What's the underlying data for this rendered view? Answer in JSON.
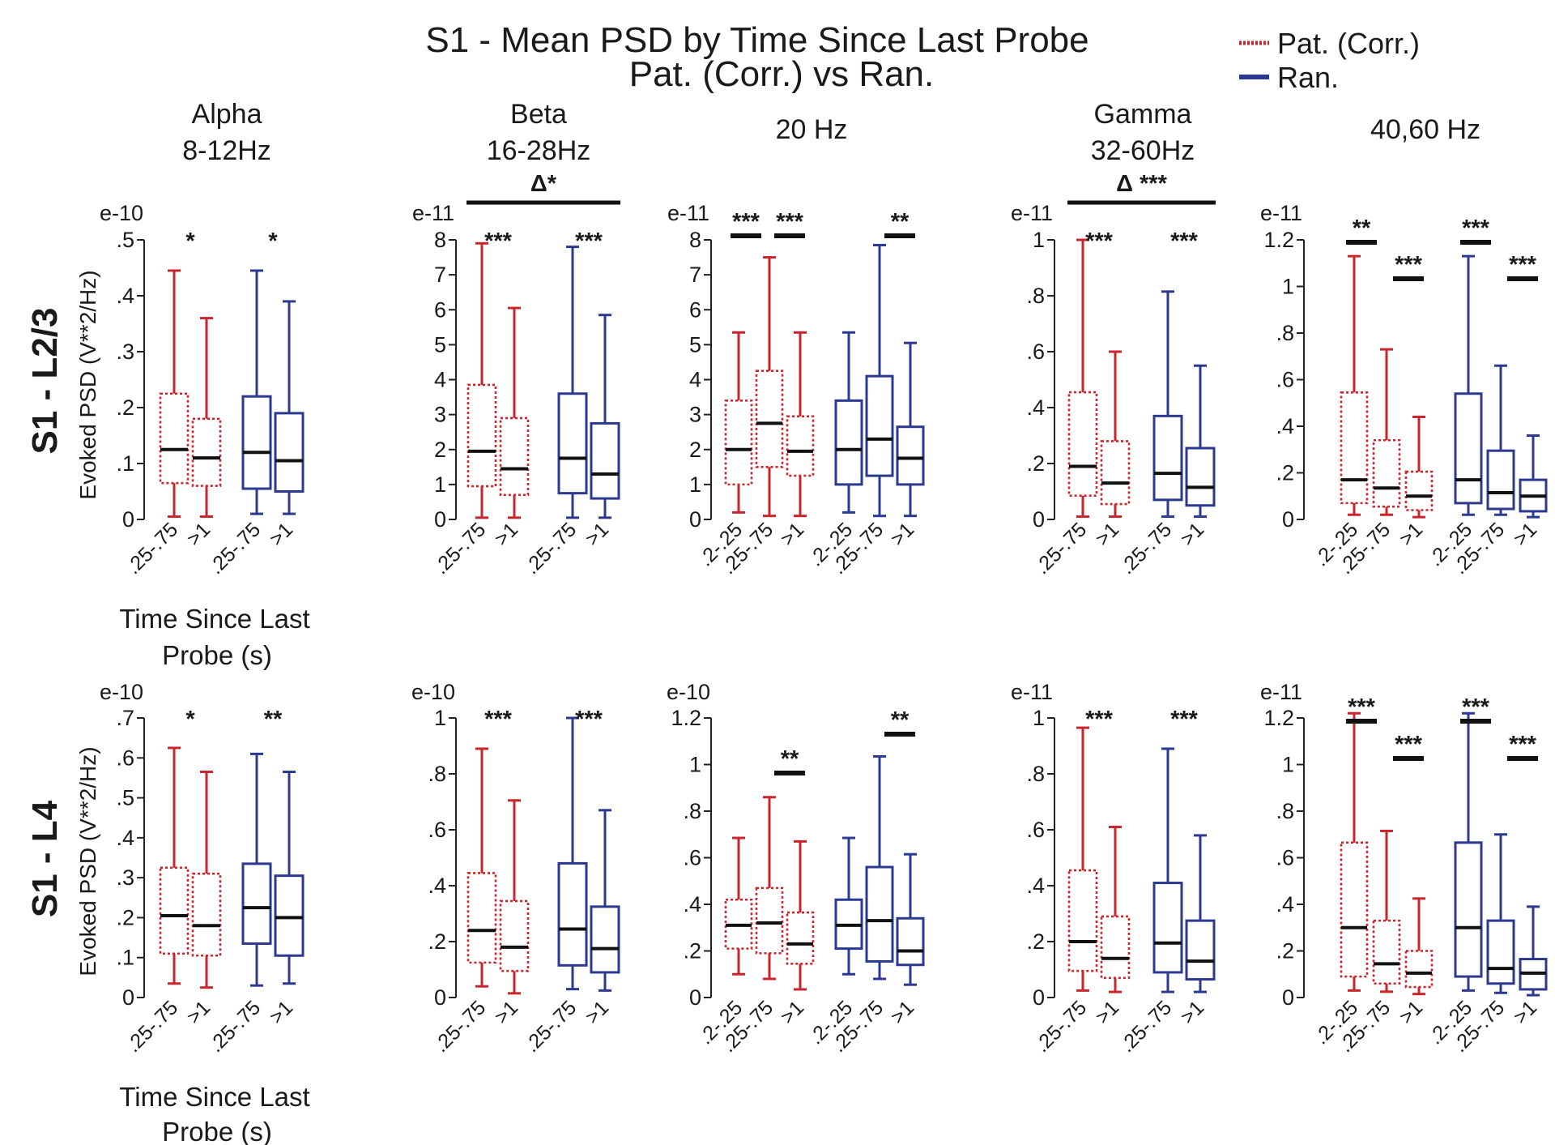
{
  "title_line1": "S1 - Mean PSD by Time Since Last Probe",
  "title_line2": "Pat. (Corr.) vs Ran.",
  "legend": [
    {
      "label": "Pat. (Corr.)",
      "color": "#c8262c",
      "style": "dotted"
    },
    {
      "label": "Ran.",
      "color": "#2b3990",
      "style": "solid"
    }
  ],
  "panel_titles": [
    [
      "Alpha",
      "8-12Hz"
    ],
    [
      "Beta",
      "16-28Hz"
    ],
    [
      "20 Hz"
    ],
    [
      "Gamma",
      "32-60Hz"
    ],
    [
      "40,60 Hz"
    ]
  ],
  "row_labels": [
    "S1 - L2/3",
    "S1 - L4"
  ],
  "ylabel": "Evoked PSD (V**2/Hz)",
  "xlabel_line1": "Time Since Last",
  "xlabel_line2": "Probe (s)",
  "chart_data": [
    {
      "type": "box",
      "row": 0,
      "col": 0,
      "exponent": "e-10",
      "ylim": [
        0,
        0.5
      ],
      "yticks": [
        0,
        0.1,
        0.2,
        0.3,
        0.4,
        0.5
      ],
      "ytick_labels": [
        "0",
        ".1",
        ".2",
        ".3",
        ".4",
        ".5"
      ],
      "categories": [
        ".25-.75",
        ">1"
      ],
      "series": [
        {
          "name": "Pat. (Corr.)",
          "boxes": [
            [
              0.005,
              0.065,
              0.125,
              0.225,
              0.445
            ],
            [
              0.005,
              0.06,
              0.11,
              0.18,
              0.36
            ]
          ]
        },
        {
          "name": "Ran.",
          "boxes": [
            [
              0.01,
              0.055,
              0.12,
              0.22,
              0.445
            ],
            [
              0.01,
              0.05,
              0.105,
              0.19,
              0.39
            ]
          ]
        }
      ],
      "annotations": [
        {
          "text": "*",
          "series": 0
        },
        {
          "text": "*",
          "series": 1
        }
      ]
    },
    {
      "type": "box",
      "row": 0,
      "col": 1,
      "exponent": "e-11",
      "ylim": [
        0,
        8
      ],
      "yticks": [
        0,
        1,
        2,
        3,
        4,
        5,
        6,
        7,
        8
      ],
      "ytick_labels": [
        "0",
        "1",
        "2",
        "3",
        "4",
        "5",
        "6",
        "7",
        "8"
      ],
      "categories": [
        ".25-.75",
        ">1"
      ],
      "series": [
        {
          "name": "Pat. (Corr.)",
          "boxes": [
            [
              0.05,
              0.95,
              1.95,
              3.85,
              7.9
            ],
            [
              0.05,
              0.7,
              1.45,
              2.9,
              6.05
            ]
          ]
        },
        {
          "name": "Ran.",
          "boxes": [
            [
              0.05,
              0.75,
              1.75,
              3.6,
              7.8
            ],
            [
              0.05,
              0.6,
              1.3,
              2.75,
              5.85
            ]
          ]
        }
      ],
      "annotations": [
        {
          "text": "***",
          "series": 0
        },
        {
          "text": "***",
          "series": 1
        }
      ],
      "group_annotation": "Δ*"
    },
    {
      "type": "box",
      "row": 0,
      "col": 2,
      "exponent": "e-11",
      "ylim": [
        0,
        8
      ],
      "yticks": [
        0,
        1,
        2,
        3,
        4,
        5,
        6,
        7,
        8
      ],
      "ytick_labels": [
        "0",
        "1",
        "2",
        "3",
        "4",
        "5",
        "6",
        "7",
        "8"
      ],
      "categories": [
        ".2-.25",
        ".25-.75",
        ">1"
      ],
      "series": [
        {
          "name": "Pat. (Corr.)",
          "boxes": [
            [
              0.2,
              1.0,
              2.0,
              3.4,
              5.35
            ],
            [
              0.1,
              1.5,
              2.75,
              4.25,
              7.5
            ],
            [
              0.1,
              1.25,
              1.95,
              2.95,
              5.35
            ]
          ]
        },
        {
          "name": "Ran.",
          "boxes": [
            [
              0.2,
              1.0,
              2.0,
              3.4,
              5.35
            ],
            [
              0.1,
              1.25,
              2.3,
              4.1,
              7.85
            ],
            [
              0.1,
              1.0,
              1.75,
              2.65,
              5.05
            ]
          ]
        }
      ],
      "bars": [
        {
          "text": "***",
          "series": 0,
          "from": 0,
          "to": 0
        },
        {
          "text": "***",
          "series": 0,
          "from": 2,
          "to": 2
        },
        {
          "text": "**",
          "series": 1,
          "from": 2,
          "to": 2
        }
      ]
    },
    {
      "type": "box",
      "row": 0,
      "col": 3,
      "exponent": "e-11",
      "ylim": [
        0,
        1
      ],
      "yticks": [
        0,
        0.2,
        0.4,
        0.6,
        0.8,
        1
      ],
      "ytick_labels": [
        "0",
        ".2",
        ".4",
        ".6",
        ".8",
        "1"
      ],
      "categories": [
        ".25-.75",
        ">1"
      ],
      "series": [
        {
          "name": "Pat. (Corr.)",
          "boxes": [
            [
              0.01,
              0.085,
              0.19,
              0.455,
              1.0
            ],
            [
              0.01,
              0.055,
              0.13,
              0.28,
              0.6
            ]
          ]
        },
        {
          "name": "Ran.",
          "boxes": [
            [
              0.01,
              0.07,
              0.165,
              0.37,
              0.815
            ],
            [
              0.01,
              0.05,
              0.115,
              0.255,
              0.55
            ]
          ]
        }
      ],
      "annotations": [
        {
          "text": "***",
          "series": 0
        },
        {
          "text": "***",
          "series": 1
        }
      ],
      "group_annotation": "Δ ***"
    },
    {
      "type": "box",
      "row": 0,
      "col": 4,
      "exponent": "e-11",
      "ylim": [
        0,
        1.2
      ],
      "yticks": [
        0,
        0.2,
        0.4,
        0.6,
        0.8,
        1,
        1.2
      ],
      "ytick_labels": [
        "0",
        ".2",
        ".4",
        ".6",
        ".8",
        "1",
        "1.2"
      ],
      "categories": [
        ".2-.25",
        ".25-.75",
        ">1"
      ],
      "series": [
        {
          "name": "Pat. (Corr.)",
          "boxes": [
            [
              0.02,
              0.07,
              0.17,
              0.545,
              1.13
            ],
            [
              0.02,
              0.055,
              0.135,
              0.34,
              0.73
            ],
            [
              0.01,
              0.04,
              0.1,
              0.205,
              0.44
            ]
          ]
        },
        {
          "name": "Ran.",
          "boxes": [
            [
              0.02,
              0.07,
              0.17,
              0.54,
              1.13
            ],
            [
              0.02,
              0.045,
              0.115,
              0.295,
              0.66
            ],
            [
              0.01,
              0.035,
              0.1,
              0.17,
              0.36
            ]
          ]
        }
      ],
      "bars": [
        {
          "text": "**",
          "series": 0,
          "from": 0,
          "to": 0,
          "level": 0
        },
        {
          "text": "***",
          "series": 0,
          "from": 2,
          "to": 2,
          "level": 1
        },
        {
          "text": "***",
          "series": 1,
          "from": 0,
          "to": 0,
          "level": 0
        },
        {
          "text": "***",
          "series": 1,
          "from": 2,
          "to": 2,
          "level": 1
        }
      ]
    },
    {
      "type": "box",
      "row": 1,
      "col": 0,
      "exponent": "e-10",
      "ylim": [
        0,
        0.7
      ],
      "yticks": [
        0,
        0.1,
        0.2,
        0.3,
        0.4,
        0.5,
        0.6,
        0.7
      ],
      "ytick_labels": [
        "0",
        ".1",
        ".2",
        ".3",
        ".4",
        ".5",
        ".6",
        ".7"
      ],
      "categories": [
        ".25-.75",
        ">1"
      ],
      "series": [
        {
          "name": "Pat. (Corr.)",
          "boxes": [
            [
              0.035,
              0.11,
              0.205,
              0.325,
              0.625
            ],
            [
              0.025,
              0.105,
              0.18,
              0.31,
              0.565
            ]
          ]
        },
        {
          "name": "Ran.",
          "boxes": [
            [
              0.03,
              0.135,
              0.225,
              0.335,
              0.61
            ],
            [
              0.035,
              0.105,
              0.2,
              0.305,
              0.565
            ]
          ]
        }
      ],
      "annotations": [
        {
          "text": "*",
          "series": 0
        },
        {
          "text": "**",
          "series": 1
        }
      ]
    },
    {
      "type": "box",
      "row": 1,
      "col": 1,
      "exponent": "e-10",
      "ylim": [
        0,
        1
      ],
      "yticks": [
        0,
        0.2,
        0.4,
        0.6,
        0.8,
        1
      ],
      "ytick_labels": [
        "0",
        ".2",
        ".4",
        ".6",
        ".8",
        "1"
      ],
      "categories": [
        ".25-.75",
        ">1"
      ],
      "series": [
        {
          "name": "Pat. (Corr.)",
          "boxes": [
            [
              0.04,
              0.125,
              0.24,
              0.445,
              0.89
            ],
            [
              0.015,
              0.095,
              0.18,
              0.345,
              0.705
            ]
          ]
        },
        {
          "name": "Ran.",
          "boxes": [
            [
              0.03,
              0.115,
              0.245,
              0.48,
              1.0
            ],
            [
              0.025,
              0.09,
              0.175,
              0.325,
              0.67
            ]
          ]
        }
      ],
      "annotations": [
        {
          "text": "***",
          "series": 0
        },
        {
          "text": "***",
          "series": 1
        }
      ]
    },
    {
      "type": "box",
      "row": 1,
      "col": 2,
      "exponent": "e-10",
      "ylim": [
        0,
        1.2
      ],
      "yticks": [
        0,
        0.2,
        0.4,
        0.6,
        0.8,
        1,
        1.2
      ],
      "ytick_labels": [
        "0",
        ".2",
        ".4",
        ".6",
        ".8",
        "1",
        "1.2"
      ],
      "categories": [
        ".2-.25",
        ".25-.75",
        ">1"
      ],
      "series": [
        {
          "name": "Pat. (Corr.)",
          "boxes": [
            [
              0.1,
              0.21,
              0.31,
              0.42,
              0.685
            ],
            [
              0.08,
              0.19,
              0.32,
              0.47,
              0.86
            ],
            [
              0.035,
              0.145,
              0.23,
              0.365,
              0.67
            ]
          ]
        },
        {
          "name": "Ran.",
          "boxes": [
            [
              0.1,
              0.21,
              0.31,
              0.42,
              0.685
            ],
            [
              0.08,
              0.155,
              0.33,
              0.56,
              1.035
            ],
            [
              0.055,
              0.14,
              0.2,
              0.34,
              0.615
            ]
          ]
        }
      ],
      "bars": [
        {
          "text": "**",
          "series": 0,
          "from": 2,
          "to": 2
        },
        {
          "text": "**",
          "series": 1,
          "from": 2,
          "to": 2
        }
      ]
    },
    {
      "type": "box",
      "row": 1,
      "col": 3,
      "exponent": "e-11",
      "ylim": [
        0,
        1
      ],
      "yticks": [
        0,
        0.2,
        0.4,
        0.6,
        0.8,
        1
      ],
      "ytick_labels": [
        "0",
        ".2",
        ".4",
        ".6",
        ".8",
        "1"
      ],
      "categories": [
        ".25-.75",
        ">1"
      ],
      "series": [
        {
          "name": "Pat. (Corr.)",
          "boxes": [
            [
              0.025,
              0.095,
              0.2,
              0.455,
              0.965
            ],
            [
              0.02,
              0.07,
              0.14,
              0.29,
              0.61
            ]
          ]
        },
        {
          "name": "Ran.",
          "boxes": [
            [
              0.02,
              0.09,
              0.195,
              0.41,
              0.89
            ],
            [
              0.02,
              0.065,
              0.13,
              0.275,
              0.58
            ]
          ]
        }
      ],
      "annotations": [
        {
          "text": "***",
          "series": 0
        },
        {
          "text": "***",
          "series": 1
        }
      ]
    },
    {
      "type": "box",
      "row": 1,
      "col": 4,
      "exponent": "e-11",
      "ylim": [
        0,
        1.2
      ],
      "yticks": [
        0,
        0.2,
        0.4,
        0.6,
        0.8,
        1,
        1.2
      ],
      "ytick_labels": [
        "0",
        ".2",
        ".4",
        ".6",
        ".8",
        "1",
        "1.2"
      ],
      "categories": [
        ".2-.25",
        ".25-.75",
        ">1"
      ],
      "series": [
        {
          "name": "Pat. (Corr.)",
          "boxes": [
            [
              0.03,
              0.09,
              0.3,
              0.665,
              1.22
            ],
            [
              0.025,
              0.06,
              0.145,
              0.33,
              0.715
            ],
            [
              0.015,
              0.045,
              0.105,
              0.2,
              0.425
            ]
          ]
        },
        {
          "name": "Ran.",
          "boxes": [
            [
              0.03,
              0.09,
              0.3,
              0.665,
              1.22
            ],
            [
              0.02,
              0.06,
              0.125,
              0.33,
              0.7
            ],
            [
              0.01,
              0.035,
              0.105,
              0.165,
              0.39
            ]
          ]
        }
      ],
      "bars": [
        {
          "text": "***",
          "series": 0,
          "from": 0,
          "to": 0,
          "level": 0
        },
        {
          "text": "***",
          "series": 0,
          "from": 2,
          "to": 2,
          "level": 1
        },
        {
          "text": "***",
          "series": 1,
          "from": 0,
          "to": 0,
          "level": 0
        },
        {
          "text": "***",
          "series": 1,
          "from": 2,
          "to": 2,
          "level": 1
        }
      ]
    }
  ]
}
